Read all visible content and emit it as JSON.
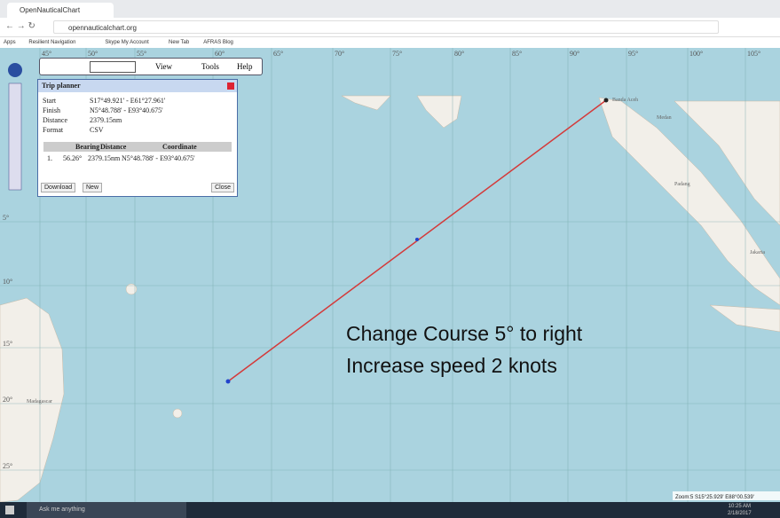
{
  "browser": {
    "tab_title": "OpenNauticalChart",
    "url": "opennauticalchart.org",
    "bookmarks": [
      "Apps",
      "Resilient Navigation",
      "Skype My Account",
      "New Tab",
      "AFRAS Blog"
    ]
  },
  "toolbar": {
    "buttons": [
      "View",
      "Tools",
      "Help"
    ]
  },
  "trip_planner": {
    "title": "Trip planner",
    "fields": [
      [
        "Start",
        "S17°49.921' - E61°27.961'"
      ],
      [
        "Finish",
        "N5°48.788' - E93°40.675'"
      ],
      [
        "Distance",
        "2379.15nm"
      ],
      [
        "Format",
        "CSV"
      ]
    ],
    "table": {
      "headers": [
        "Bearing",
        "Distance",
        "Coordinate"
      ],
      "rows": [
        [
          "1.",
          "56.26°",
          "2379.15nm",
          "N5°48.788' - E93°40.675'"
        ]
      ]
    },
    "buttons": [
      "Download",
      "New",
      "Close"
    ]
  },
  "map": {
    "longitude_labels": [
      "45°",
      "50°",
      "55°",
      "60°",
      "65°",
      "70°",
      "75°",
      "80°",
      "85°",
      "90°",
      "95°",
      "100°",
      "105°"
    ],
    "latitude_labels": [
      "5°",
      "10°",
      "15°",
      "20°",
      "25°"
    ],
    "places": [
      "Madagascar",
      "Banda Aceh",
      "Medan",
      "Padang",
      "Jakarta"
    ],
    "status": "Zoom:5 S15°25.929' E88°00.539'"
  },
  "annotation": [
    "Change Course 5° to right",
    "Increase speed 2 knots"
  ],
  "taskbar": {
    "search": "Ask me anything",
    "time": "10:25 AM",
    "date": "2/18/2017"
  }
}
